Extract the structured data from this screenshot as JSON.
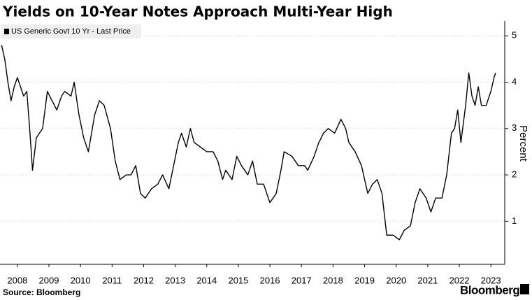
{
  "chart_data": {
    "type": "line",
    "title": "Yields on 10-Year Notes Approach Multi-Year High",
    "y_label": "Percent",
    "source": "Source: Bloomberg",
    "brand": "Bloomberg",
    "legend": "top-left",
    "grid": true,
    "xlim": [
      2007.95,
      2023.85
    ],
    "ylim": [
      0.07,
      5.32
    ],
    "yticks": [
      1,
      2,
      3,
      4,
      5
    ],
    "xticks": [
      {
        "value": 2008.5,
        "label": "2008"
      },
      {
        "value": 2009.5,
        "label": "2009"
      },
      {
        "value": 2010.5,
        "label": "2010"
      },
      {
        "value": 2011.5,
        "label": "2011"
      },
      {
        "value": 2012.5,
        "label": "2012"
      },
      {
        "value": 2013.5,
        "label": "2013"
      },
      {
        "value": 2014.5,
        "label": "2014"
      },
      {
        "value": 2015.5,
        "label": "2015"
      },
      {
        "value": 2016.5,
        "label": "2016"
      },
      {
        "value": 2017.5,
        "label": "2017"
      },
      {
        "value": 2018.5,
        "label": "2018"
      },
      {
        "value": 2019.5,
        "label": "2019"
      },
      {
        "value": 2020.5,
        "label": "2020"
      },
      {
        "value": 2021.5,
        "label": "2021"
      },
      {
        "value": 2022.5,
        "label": "2022"
      },
      {
        "value": 2023.5,
        "label": "2023"
      }
    ],
    "x": [
      2008.0,
      2008.1,
      2008.2,
      2008.3,
      2008.4,
      2008.5,
      2008.6,
      2008.7,
      2008.8,
      2008.9,
      2008.98,
      2009.1,
      2009.2,
      2009.3,
      2009.45,
      2009.6,
      2009.75,
      2009.9,
      2010.0,
      2010.2,
      2010.3,
      2010.45,
      2010.6,
      2010.75,
      2010.95,
      2011.1,
      2011.25,
      2011.45,
      2011.6,
      2011.75,
      2011.95,
      2012.1,
      2012.25,
      2012.4,
      2012.55,
      2012.75,
      2012.95,
      2013.1,
      2013.3,
      2013.45,
      2013.6,
      2013.7,
      2013.85,
      2013.98,
      2014.1,
      2014.3,
      2014.5,
      2014.7,
      2014.85,
      2015.0,
      2015.1,
      2015.3,
      2015.45,
      2015.6,
      2015.8,
      2015.95,
      2016.1,
      2016.3,
      2016.5,
      2016.7,
      2016.85,
      2016.95,
      2017.2,
      2017.4,
      2017.6,
      2017.7,
      2017.9,
      2018.05,
      2018.2,
      2018.35,
      2018.55,
      2018.75,
      2018.9,
      2019.0,
      2019.2,
      2019.4,
      2019.6,
      2019.75,
      2019.9,
      2020.05,
      2020.2,
      2020.4,
      2020.6,
      2020.75,
      2020.95,
      2021.1,
      2021.25,
      2021.45,
      2021.6,
      2021.75,
      2021.95,
      2022.1,
      2022.25,
      2022.35,
      2022.45,
      2022.55,
      2022.7,
      2022.8,
      2022.9,
      2023.0,
      2023.1,
      2023.2,
      2023.35,
      2023.5,
      2023.6,
      2023.65
    ],
    "series": [
      {
        "name": "US Generic Govt 10 Yr - Last Price",
        "color": "#000000",
        "values": [
          4.8,
          4.5,
          4.0,
          3.6,
          3.9,
          4.1,
          3.9,
          3.7,
          3.8,
          2.9,
          2.1,
          2.8,
          2.9,
          3.0,
          3.8,
          3.6,
          3.4,
          3.7,
          3.8,
          3.7,
          4.0,
          3.3,
          2.8,
          2.5,
          3.3,
          3.6,
          3.5,
          3.0,
          2.3,
          1.9,
          2.0,
          2.0,
          2.2,
          1.6,
          1.5,
          1.7,
          1.8,
          2.0,
          1.7,
          2.2,
          2.7,
          2.9,
          2.6,
          3.0,
          2.7,
          2.6,
          2.5,
          2.5,
          2.3,
          1.9,
          2.1,
          1.9,
          2.4,
          2.2,
          2.0,
          2.3,
          1.8,
          1.8,
          1.4,
          1.6,
          2.1,
          2.5,
          2.4,
          2.2,
          2.2,
          2.1,
          2.4,
          2.7,
          2.9,
          3.0,
          2.9,
          3.2,
          3.0,
          2.7,
          2.5,
          2.2,
          1.6,
          1.8,
          1.9,
          1.6,
          0.7,
          0.7,
          0.6,
          0.8,
          0.9,
          1.4,
          1.7,
          1.5,
          1.2,
          1.5,
          1.5,
          2.0,
          2.9,
          3.0,
          3.4,
          2.7,
          3.5,
          4.2,
          3.7,
          3.5,
          3.9,
          3.5,
          3.5,
          3.8,
          4.1,
          4.2
        ]
      }
    ]
  }
}
